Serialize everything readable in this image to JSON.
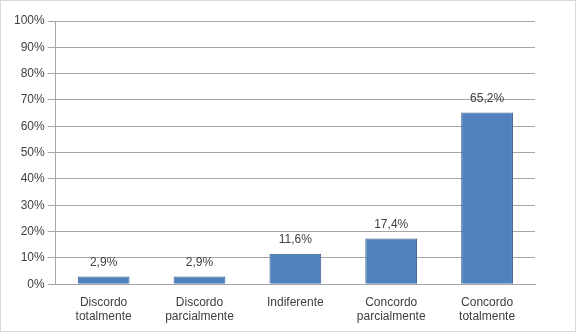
{
  "chart_data": {
    "type": "bar",
    "categories": [
      "Discordo totalmente",
      "Discordo parcialmente",
      "Indiferente",
      "Concordo parcialmente",
      "Concordo totalmente"
    ],
    "values": [
      2.9,
      2.9,
      11.6,
      17.4,
      65.2
    ],
    "value_labels": [
      "2,9%",
      "2,9%",
      "11,6%",
      "17,4%",
      "65,2%"
    ],
    "color": "#4f81bd",
    "ylim": [
      0,
      100
    ],
    "yticks": [
      {
        "value": 0,
        "label": "0%"
      },
      {
        "value": 10,
        "label": "10%"
      },
      {
        "value": 20,
        "label": "20%"
      },
      {
        "value": 30,
        "label": "30%"
      },
      {
        "value": 40,
        "label": "40%"
      },
      {
        "value": 50,
        "label": "50%"
      },
      {
        "value": 60,
        "label": "60%"
      },
      {
        "value": 70,
        "label": "70%"
      },
      {
        "value": 80,
        "label": "80%"
      },
      {
        "value": 90,
        "label": "90%"
      },
      {
        "value": 100,
        "label": "100%"
      }
    ],
    "grid": true,
    "data_labels": true
  }
}
